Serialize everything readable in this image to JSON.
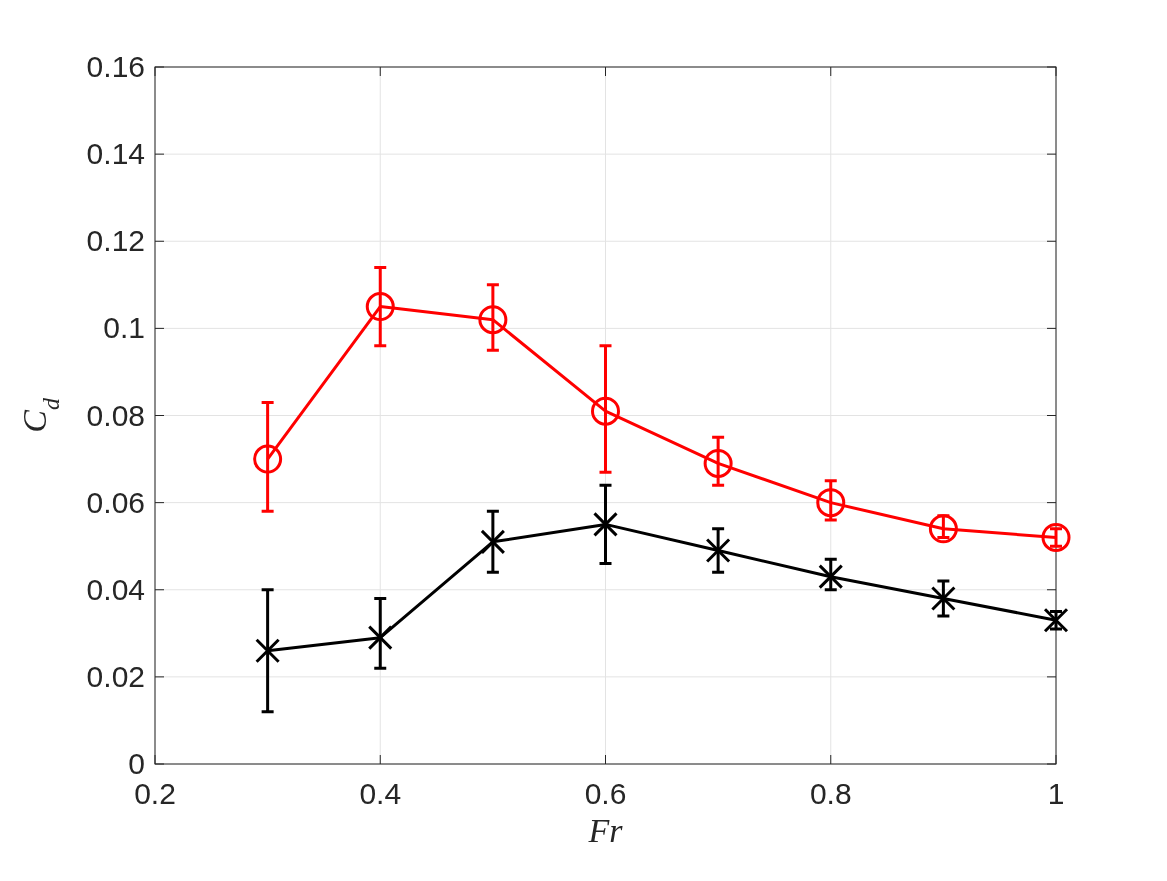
{
  "chart_data": {
    "type": "line",
    "xlabel": "Fr",
    "ylabel": "C$_{d}$",
    "x": [
      0.3,
      0.4,
      0.5,
      0.6,
      0.7,
      0.8,
      0.9,
      1.0
    ],
    "series": [
      {
        "color": "#ff0000",
        "marker": "circle",
        "values": [
          0.07,
          0.105,
          0.102,
          0.081,
          0.069,
          0.06,
          0.054,
          0.052
        ],
        "errors": [
          [
            0.058,
            0.083
          ],
          [
            0.096,
            0.114
          ],
          [
            0.095,
            0.11
          ],
          [
            0.067,
            0.096
          ],
          [
            0.064,
            0.075
          ],
          [
            0.056,
            0.065
          ],
          [
            0.052,
            0.057
          ],
          [
            0.05,
            0.054
          ]
        ]
      },
      {
        "color": "#000000",
        "marker": "cross",
        "values": [
          0.026,
          0.029,
          0.051,
          0.055,
          0.049,
          0.043,
          0.038,
          0.033
        ],
        "errors": [
          [
            0.012,
            0.04
          ],
          [
            0.022,
            0.038
          ],
          [
            0.044,
            0.058
          ],
          [
            0.046,
            0.064
          ],
          [
            0.044,
            0.054
          ],
          [
            0.04,
            0.047
          ],
          [
            0.034,
            0.042
          ],
          [
            0.031,
            0.035
          ]
        ]
      }
    ],
    "xlim": [
      0.2,
      1
    ],
    "xticks": [
      0.2,
      0.4,
      0.6,
      0.8,
      1
    ],
    "ylim": [
      0,
      0.16
    ],
    "yticks": [
      0,
      0.02,
      0.04,
      0.06,
      0.08,
      0.1,
      0.12,
      0.14,
      0.16
    ],
    "grid": true,
    "line_style": "solid"
  }
}
